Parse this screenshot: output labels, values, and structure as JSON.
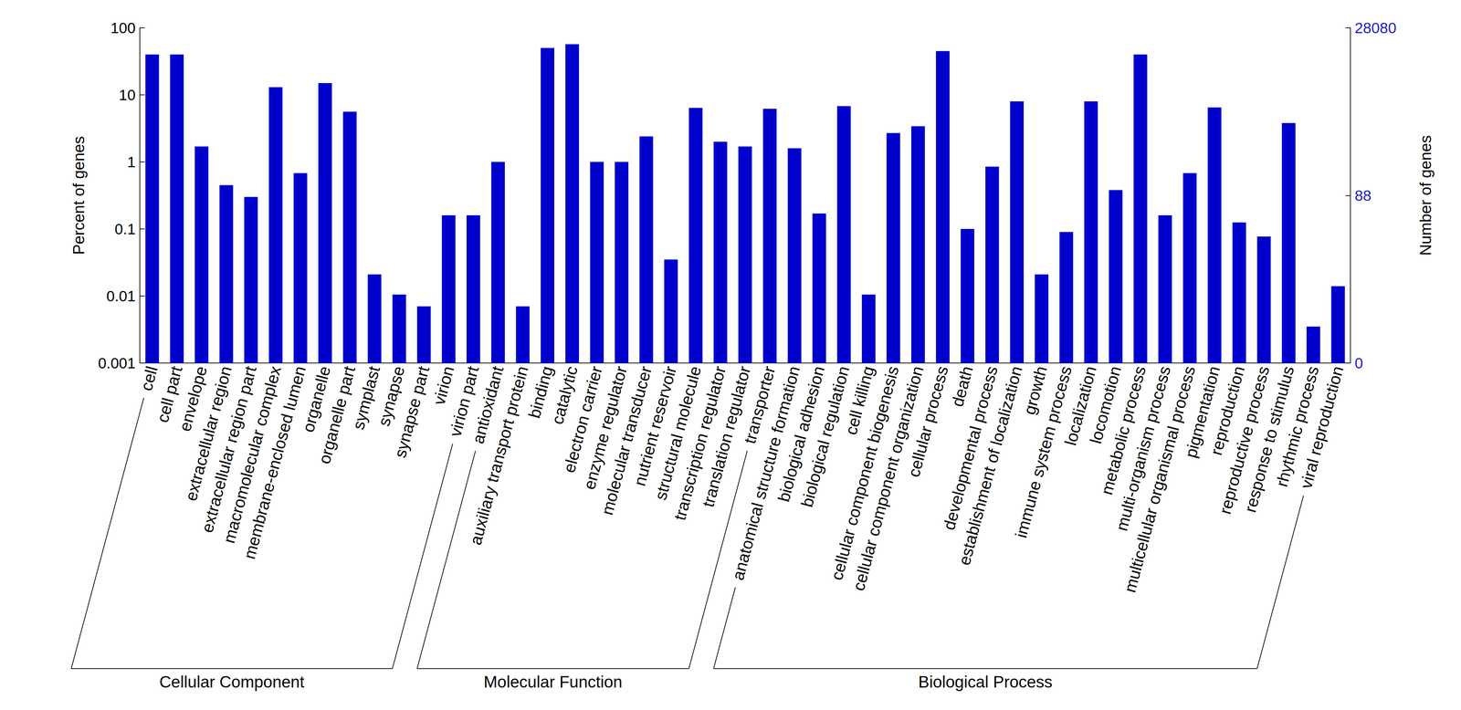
{
  "chart_data": {
    "type": "bar",
    "categories": [
      "cell",
      "cell part",
      "envelope",
      "extracellular region",
      "extracellular region part",
      "macromolecular complex",
      "membrane-enclosed lumen",
      "organelle",
      "organelle part",
      "symplast",
      "synapse",
      "synapse part",
      "virion",
      "virion part",
      "antioxidant",
      "auxiliary transport protein",
      "binding",
      "catalytic",
      "electron carrier",
      "enzyme regulator",
      "molecular transducer",
      "nutrient reservoir",
      "structural molecule",
      "transcription regulator",
      "translation regulator",
      "transporter",
      "anatomical structure formation",
      "biological adhesion",
      "biological regulation",
      "cell killing",
      "cellular component biogenesis",
      "cellular component organization",
      "cellular process",
      "death",
      "developmental process",
      "establishment of localization",
      "growth",
      "immune system process",
      "localization",
      "locomotion",
      "metabolic process",
      "multi-organism process",
      "multicellular organismal process",
      "pigmentation",
      "reproduction",
      "reproductive process",
      "response to stimulus",
      "rhythmic process",
      "viral reproduction"
    ],
    "values": [
      40,
      40,
      1.7,
      0.45,
      0.3,
      13,
      0.68,
      15,
      5.6,
      0.021,
      0.0105,
      0.007,
      0.16,
      0.16,
      1.0,
      0.007,
      50,
      57,
      1.0,
      1.0,
      2.4,
      0.035,
      6.4,
      2.0,
      1.7,
      6.2,
      1.6,
      0.17,
      6.8,
      0.0105,
      2.7,
      3.4,
      45,
      0.1,
      0.85,
      8,
      0.021,
      0.09,
      8,
      0.38,
      40,
      0.16,
      0.68,
      6.5,
      0.125,
      0.077,
      3.8,
      0.0035,
      0.014
    ],
    "color": "#0000cd",
    "ylabel": "Percent of genes",
    "y2label": "Number of genes",
    "log": true,
    "ylim": [
      0.001,
      100
    ],
    "yticks": [
      0.001,
      0.01,
      0.1,
      1,
      10,
      100
    ],
    "y2lim": [
      0.2808,
      28080
    ],
    "y2ticks": [
      {
        "value": 0.2808,
        "label": "0"
      },
      88,
      28080
    ],
    "grid": false,
    "groups": [
      {
        "label": "Cellular Component",
        "count": 14
      },
      {
        "label": "Molecular Function",
        "count": 12
      },
      {
        "label": "Biological Process",
        "count": 23
      }
    ]
  }
}
